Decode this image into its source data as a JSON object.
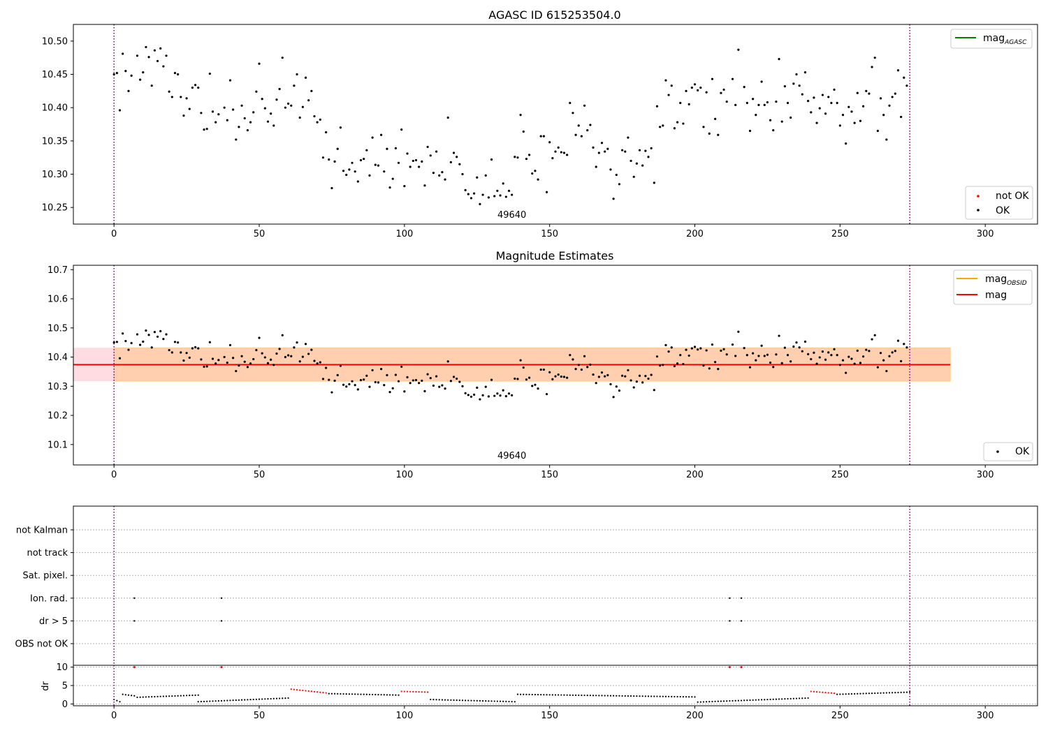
{
  "chart_data": [
    {
      "type": "scatter",
      "title": "AGASC ID 615253504.0",
      "xlim": [
        -14,
        318
      ],
      "ylim": [
        10.225,
        10.525
      ],
      "xticks": [
        0,
        50,
        100,
        150,
        200,
        250,
        300
      ],
      "yticks": [
        10.25,
        10.3,
        10.35,
        10.4,
        10.45,
        10.5
      ],
      "vlines": [
        0,
        274
      ],
      "obsid_label": "49640",
      "obsid_label_x": 137,
      "legend_lines": [
        {
          "label": "mag",
          "sub": "AGASC",
          "color": "#008000"
        }
      ],
      "legend_markers": [
        {
          "label": "not OK",
          "color": "#ff0000"
        },
        {
          "label": "OK",
          "color": "#000000"
        }
      ],
      "series": [
        {
          "name": "OK",
          "color": "#000000",
          "ref": "mag_points"
        }
      ]
    },
    {
      "type": "scatter",
      "title": "Magnitude Estimates",
      "xlim": [
        -14,
        318
      ],
      "ylim": [
        10.03,
        10.715
      ],
      "xticks": [
        0,
        50,
        100,
        150,
        200,
        250,
        300
      ],
      "yticks": [
        10.1,
        10.2,
        10.3,
        10.4,
        10.5,
        10.6,
        10.7
      ],
      "vlines": [
        0,
        274
      ],
      "obsid_label": "49640",
      "obsid_label_x": 137,
      "mag": 10.374,
      "mag_band": [
        10.317,
        10.432
      ],
      "obsid_band": [
        10.317,
        10.432
      ],
      "band_x": [
        -14,
        288
      ],
      "obsid_band_x": [
        0,
        288
      ],
      "legend_lines": [
        {
          "label": "mag",
          "sub": "OBSID",
          "color": "#ffa500"
        },
        {
          "label": "mag",
          "sub": "",
          "color": "#ff0000"
        }
      ],
      "legend_markers": [
        {
          "label": "OK",
          "color": "#000000"
        }
      ],
      "series": [
        {
          "name": "OK",
          "color": "#000000",
          "ref": "mag_points"
        }
      ]
    },
    {
      "type": "scatter",
      "xlim": [
        -14,
        318
      ],
      "flag_rows": [
        "not Kalman",
        "not track",
        "Sat. pixel.",
        "Ion. rad.",
        "dr > 5",
        "OBS not OK"
      ],
      "flags": {
        "Ion. rad.": [
          7,
          37,
          212,
          216
        ],
        "dr > 5": [
          7,
          37,
          212,
          216
        ]
      },
      "dr_ylabel": "dr",
      "dr_ylim": [
        -0.5,
        10.5
      ],
      "dr_yticks": [
        0,
        5,
        10
      ],
      "dr_high_red": [
        7,
        37,
        212,
        216
      ],
      "dr_segments": [
        {
          "x": [
            0,
            2
          ],
          "y": [
            1.2,
            0.6
          ],
          "color": "#000000"
        },
        {
          "x": [
            3,
            7
          ],
          "y": [
            2.6,
            2.2
          ],
          "color": "#000000"
        },
        {
          "x": [
            8,
            29
          ],
          "y": [
            1.8,
            2.4
          ],
          "color": "#000000"
        },
        {
          "x": [
            29,
            60
          ],
          "y": [
            0.6,
            1.6
          ],
          "color": "#000000"
        },
        {
          "x": [
            61,
            73
          ],
          "y": [
            4.0,
            3.0
          ],
          "color": "#ff0000"
        },
        {
          "x": [
            74,
            98
          ],
          "y": [
            2.8,
            2.4
          ],
          "color": "#000000"
        },
        {
          "x": [
            99,
            108
          ],
          "y": [
            3.4,
            3.2
          ],
          "color": "#ff0000"
        },
        {
          "x": [
            109,
            138
          ],
          "y": [
            1.2,
            0.6
          ],
          "color": "#000000"
        },
        {
          "x": [
            139,
            200
          ],
          "y": [
            2.6,
            1.9
          ],
          "color": "#000000"
        },
        {
          "x": [
            201,
            239
          ],
          "y": [
            0.5,
            1.6
          ],
          "color": "#000000"
        },
        {
          "x": [
            240,
            248
          ],
          "y": [
            3.4,
            2.9
          ],
          "color": "#ff0000"
        },
        {
          "x": [
            249,
            274
          ],
          "y": [
            2.6,
            3.2
          ],
          "color": "#000000"
        }
      ],
      "xticks": [
        0,
        50,
        100,
        150,
        200,
        250,
        300
      ],
      "vlines": [
        0,
        274
      ]
    }
  ],
  "mag_points": [
    [
      0,
      10.45
    ],
    [
      1,
      10.452
    ],
    [
      2,
      10.396
    ],
    [
      3,
      10.481
    ],
    [
      4,
      10.455
    ],
    [
      5,
      10.425
    ],
    [
      6,
      10.448
    ],
    [
      8,
      10.478
    ],
    [
      9,
      10.442
    ],
    [
      10,
      10.453
    ],
    [
      11,
      10.491
    ],
    [
      12,
      10.476
    ],
    [
      13,
      10.433
    ],
    [
      14,
      10.486
    ],
    [
      15,
      10.47
    ],
    [
      16,
      10.489
    ],
    [
      17,
      10.462
    ],
    [
      18,
      10.478
    ],
    [
      19,
      10.424
    ],
    [
      20,
      10.416
    ],
    [
      21,
      10.452
    ],
    [
      22,
      10.45
    ],
    [
      23,
      10.416
    ],
    [
      24,
      10.388
    ],
    [
      25,
      10.414
    ],
    [
      26,
      10.398
    ],
    [
      27,
      10.43
    ],
    [
      28,
      10.434
    ],
    [
      29,
      10.43
    ],
    [
      30,
      10.392
    ],
    [
      31,
      10.367
    ],
    [
      32,
      10.368
    ],
    [
      33,
      10.451
    ],
    [
      34,
      10.394
    ],
    [
      35,
      10.378
    ],
    [
      36,
      10.39
    ],
    [
      38,
      10.4
    ],
    [
      39,
      10.381
    ],
    [
      40,
      10.441
    ],
    [
      41,
      10.397
    ],
    [
      42,
      10.352
    ],
    [
      43,
      10.371
    ],
    [
      44,
      10.403
    ],
    [
      45,
      10.384
    ],
    [
      46,
      10.366
    ],
    [
      47,
      10.378
    ],
    [
      48,
      10.393
    ],
    [
      49,
      10.424
    ],
    [
      50,
      10.466
    ],
    [
      51,
      10.413
    ],
    [
      52,
      10.399
    ],
    [
      53,
      10.379
    ],
    [
      54,
      10.391
    ],
    [
      55,
      10.373
    ],
    [
      56,
      10.412
    ],
    [
      57,
      10.428
    ],
    [
      58,
      10.475
    ],
    [
      59,
      10.4
    ],
    [
      60,
      10.406
    ],
    [
      61,
      10.403
    ],
    [
      62,
      10.433
    ],
    [
      63,
      10.45
    ],
    [
      64,
      10.385
    ],
    [
      65,
      10.401
    ],
    [
      66,
      10.445
    ],
    [
      67,
      10.411
    ],
    [
      68,
      10.425
    ],
    [
      69,
      10.387
    ],
    [
      70,
      10.378
    ],
    [
      71,
      10.382
    ],
    [
      72,
      10.325
    ],
    [
      73,
      10.363
    ],
    [
      74,
      10.322
    ],
    [
      75,
      10.279
    ],
    [
      76,
      10.319
    ],
    [
      77,
      10.338
    ],
    [
      78,
      10.37
    ],
    [
      79,
      10.305
    ],
    [
      80,
      10.299
    ],
    [
      81,
      10.307
    ],
    [
      82,
      10.317
    ],
    [
      83,
      10.304
    ],
    [
      84,
      10.289
    ],
    [
      85,
      10.321
    ],
    [
      86,
      10.323
    ],
    [
      87,
      10.336
    ],
    [
      88,
      10.298
    ],
    [
      89,
      10.355
    ],
    [
      90,
      10.314
    ],
    [
      91,
      10.313
    ],
    [
      92,
      10.359
    ],
    [
      93,
      10.304
    ],
    [
      94,
      10.338
    ],
    [
      95,
      10.28
    ],
    [
      96,
      10.293
    ],
    [
      97,
      10.339
    ],
    [
      98,
      10.317
    ],
    [
      99,
      10.367
    ],
    [
      100,
      10.282
    ],
    [
      101,
      10.331
    ],
    [
      102,
      10.311
    ],
    [
      103,
      10.32
    ],
    [
      104,
      10.321
    ],
    [
      105,
      10.311
    ],
    [
      106,
      10.319
    ],
    [
      107,
      10.283
    ],
    [
      108,
      10.341
    ],
    [
      109,
      10.328
    ],
    [
      110,
      10.302
    ],
    [
      111,
      10.334
    ],
    [
      112,
      10.298
    ],
    [
      113,
      10.303
    ],
    [
      114,
      10.292
    ],
    [
      115,
      10.385
    ],
    [
      116,
      10.318
    ],
    [
      117,
      10.332
    ],
    [
      118,
      10.326
    ],
    [
      119,
      10.315
    ],
    [
      120,
      10.3
    ],
    [
      121,
      10.276
    ],
    [
      122,
      10.27
    ],
    [
      123,
      10.264
    ],
    [
      124,
      10.271
    ],
    [
      125,
      10.295
    ],
    [
      126,
      10.255
    ],
    [
      127,
      10.269
    ],
    [
      128,
      10.298
    ],
    [
      129,
      10.265
    ],
    [
      130,
      10.322
    ],
    [
      131,
      10.267
    ],
    [
      132,
      10.275
    ],
    [
      133,
      10.268
    ],
    [
      134,
      10.286
    ],
    [
      135,
      10.266
    ],
    [
      136,
      10.275
    ],
    [
      137,
      10.269
    ],
    [
      138,
      10.326
    ],
    [
      139,
      10.325
    ],
    [
      140,
      10.389
    ],
    [
      141,
      10.364
    ],
    [
      142,
      10.323
    ],
    [
      143,
      10.329
    ],
    [
      144,
      10.301
    ],
    [
      145,
      10.305
    ],
    [
      146,
      10.292
    ],
    [
      147,
      10.357
    ],
    [
      148,
      10.357
    ],
    [
      149,
      10.273
    ],
    [
      150,
      10.348
    ],
    [
      151,
      10.324
    ],
    [
      152,
      10.334
    ],
    [
      153,
      10.34
    ],
    [
      154,
      10.333
    ],
    [
      155,
      10.332
    ],
    [
      156,
      10.329
    ],
    [
      157,
      10.407
    ],
    [
      158,
      10.392
    ],
    [
      159,
      10.359
    ],
    [
      160,
      10.373
    ],
    [
      161,
      10.357
    ],
    [
      162,
      10.403
    ],
    [
      163,
      10.366
    ],
    [
      164,
      10.374
    ],
    [
      165,
      10.34
    ],
    [
      166,
      10.311
    ],
    [
      167,
      10.332
    ],
    [
      168,
      10.347
    ],
    [
      169,
      10.334
    ],
    [
      170,
      10.338
    ],
    [
      171,
      10.307
    ],
    [
      172,
      10.263
    ],
    [
      173,
      10.299
    ],
    [
      174,
      10.285
    ],
    [
      175,
      10.336
    ],
    [
      176,
      10.334
    ],
    [
      177,
      10.355
    ],
    [
      178,
      10.32
    ],
    [
      179,
      10.296
    ],
    [
      180,
      10.316
    ],
    [
      181,
      10.336
    ],
    [
      182,
      10.313
    ],
    [
      183,
      10.335
    ],
    [
      184,
      10.326
    ],
    [
      185,
      10.339
    ],
    [
      186,
      10.287
    ],
    [
      187,
      10.402
    ],
    [
      188,
      10.371
    ],
    [
      189,
      10.373
    ],
    [
      190,
      10.441
    ],
    [
      191,
      10.419
    ],
    [
      192,
      10.433
    ],
    [
      193,
      10.369
    ],
    [
      194,
      10.378
    ],
    [
      195,
      10.407
    ],
    [
      196,
      10.376
    ],
    [
      197,
      10.425
    ],
    [
      198,
      10.405
    ],
    [
      199,
      10.43
    ],
    [
      200,
      10.435
    ],
    [
      201,
      10.426
    ],
    [
      202,
      10.43
    ],
    [
      203,
      10.371
    ],
    [
      204,
      10.423
    ],
    [
      205,
      10.361
    ],
    [
      206,
      10.443
    ],
    [
      207,
      10.383
    ],
    [
      208,
      10.359
    ],
    [
      209,
      10.422
    ],
    [
      210,
      10.427
    ],
    [
      211,
      10.409
    ],
    [
      213,
      10.443
    ],
    [
      214,
      10.404
    ],
    [
      215,
      10.487
    ],
    [
      217,
      10.431
    ],
    [
      218,
      10.407
    ],
    [
      219,
      10.365
    ],
    [
      220,
      10.413
    ],
    [
      221,
      10.389
    ],
    [
      222,
      10.404
    ],
    [
      223,
      10.439
    ],
    [
      224,
      10.404
    ],
    [
      225,
      10.408
    ],
    [
      226,
      10.381
    ],
    [
      227,
      10.366
    ],
    [
      228,
      10.409
    ],
    [
      229,
      10.473
    ],
    [
      230,
      10.379
    ],
    [
      231,
      10.432
    ],
    [
      232,
      10.407
    ],
    [
      233,
      10.385
    ],
    [
      234,
      10.436
    ],
    [
      235,
      10.45
    ],
    [
      236,
      10.433
    ],
    [
      237,
      10.42
    ],
    [
      238,
      10.453
    ],
    [
      239,
      10.41
    ],
    [
      240,
      10.393
    ],
    [
      241,
      10.415
    ],
    [
      242,
      10.377
    ],
    [
      243,
      10.399
    ],
    [
      244,
      10.419
    ],
    [
      245,
      10.391
    ],
    [
      246,
      10.416
    ],
    [
      247,
      10.407
    ],
    [
      248,
      10.427
    ],
    [
      249,
      10.407
    ],
    [
      250,
      10.373
    ],
    [
      251,
      10.389
    ],
    [
      252,
      10.346
    ],
    [
      253,
      10.401
    ],
    [
      254,
      10.394
    ],
    [
      255,
      10.377
    ],
    [
      256,
      10.422
    ],
    [
      257,
      10.38
    ],
    [
      258,
      10.402
    ],
    [
      259,
      10.425
    ],
    [
      260,
      10.421
    ],
    [
      261,
      10.461
    ],
    [
      262,
      10.475
    ],
    [
      263,
      10.365
    ],
    [
      264,
      10.414
    ],
    [
      265,
      10.389
    ],
    [
      266,
      10.352
    ],
    [
      267,
      10.403
    ],
    [
      268,
      10.416
    ],
    [
      269,
      10.421
    ],
    [
      270,
      10.456
    ],
    [
      271,
      10.386
    ],
    [
      272,
      10.445
    ],
    [
      273,
      10.433
    ]
  ]
}
